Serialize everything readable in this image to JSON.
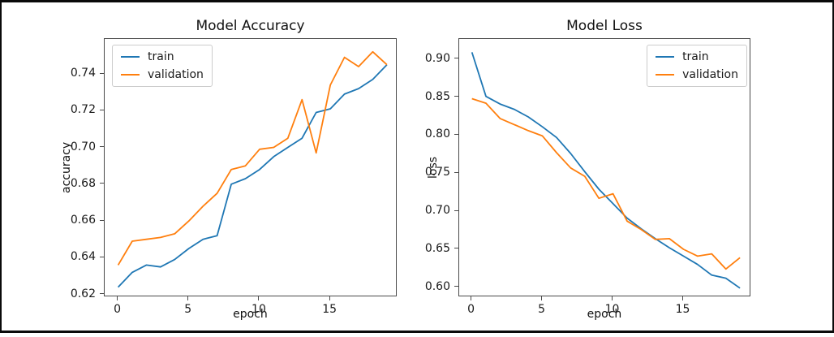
{
  "figure": {
    "background": "#ffffff",
    "border_color": "#0a0a0a",
    "axes_color": "#4a4a4a"
  },
  "chart_data": [
    {
      "type": "line",
      "title": "Model Accuracy",
      "xlabel": "epoch",
      "ylabel": "accuracy",
      "x": [
        0,
        1,
        2,
        3,
        4,
        5,
        6,
        7,
        8,
        9,
        10,
        11,
        12,
        13,
        14,
        15,
        16,
        17,
        18,
        19
      ],
      "series": [
        {
          "name": "train",
          "color": "#1f77b4",
          "values": [
            0.624,
            0.632,
            0.636,
            0.635,
            0.639,
            0.645,
            0.65,
            0.652,
            0.68,
            0.683,
            0.688,
            0.695,
            0.7,
            0.705,
            0.719,
            0.721,
            0.729,
            0.732,
            0.737,
            0.745
          ]
        },
        {
          "name": "validation",
          "color": "#ff7f0e",
          "values": [
            0.636,
            0.649,
            0.65,
            0.651,
            0.653,
            0.66,
            0.668,
            0.675,
            0.688,
            0.69,
            0.699,
            0.7,
            0.705,
            0.726,
            0.697,
            0.734,
            0.749,
            0.744,
            0.752,
            0.745
          ]
        }
      ],
      "xlim": [
        -0.95,
        19.75
      ],
      "ylim": [
        0.6185,
        0.759
      ],
      "xticks": [
        0,
        5,
        10,
        15
      ],
      "xtick_labels": [
        "0",
        "5",
        "10",
        "15"
      ],
      "yticks": [
        0.62,
        0.64,
        0.66,
        0.68,
        0.7,
        0.72,
        0.74
      ],
      "ytick_labels": [
        "0.62",
        "0.64",
        "0.66",
        "0.68",
        "0.70",
        "0.72",
        "0.74"
      ],
      "grid": false,
      "legend_position": "upper-left",
      "legend_entries": [
        "train",
        "validation"
      ]
    },
    {
      "type": "line",
      "title": "Model Loss",
      "xlabel": "epoch",
      "ylabel": "loss",
      "x": [
        0,
        1,
        2,
        3,
        4,
        5,
        6,
        7,
        8,
        9,
        10,
        11,
        12,
        13,
        14,
        15,
        16,
        17,
        18,
        19
      ],
      "series": [
        {
          "name": "train",
          "color": "#1f77b4",
          "values": [
            0.909,
            0.851,
            0.841,
            0.834,
            0.824,
            0.811,
            0.797,
            0.776,
            0.752,
            0.729,
            0.71,
            0.691,
            0.677,
            0.664,
            0.652,
            0.641,
            0.63,
            0.616,
            0.612,
            0.599
          ]
        },
        {
          "name": "validation",
          "color": "#ff7f0e",
          "values": [
            0.848,
            0.842,
            0.822,
            0.814,
            0.806,
            0.799,
            0.777,
            0.757,
            0.746,
            0.717,
            0.723,
            0.687,
            0.676,
            0.663,
            0.664,
            0.65,
            0.641,
            0.644,
            0.624,
            0.639
          ]
        }
      ],
      "xlim": [
        -0.9,
        19.8
      ],
      "ylim": [
        0.587,
        0.9265
      ],
      "xticks": [
        0,
        5,
        10,
        15
      ],
      "xtick_labels": [
        "0",
        "5",
        "10",
        "15"
      ],
      "yticks": [
        0.6,
        0.65,
        0.7,
        0.75,
        0.8,
        0.85,
        0.9
      ],
      "ytick_labels": [
        "0.60",
        "0.65",
        "0.70",
        "0.75",
        "0.80",
        "0.85",
        "0.90"
      ],
      "grid": false,
      "legend_position": "upper-right",
      "legend_entries": [
        "train",
        "validation"
      ]
    }
  ]
}
